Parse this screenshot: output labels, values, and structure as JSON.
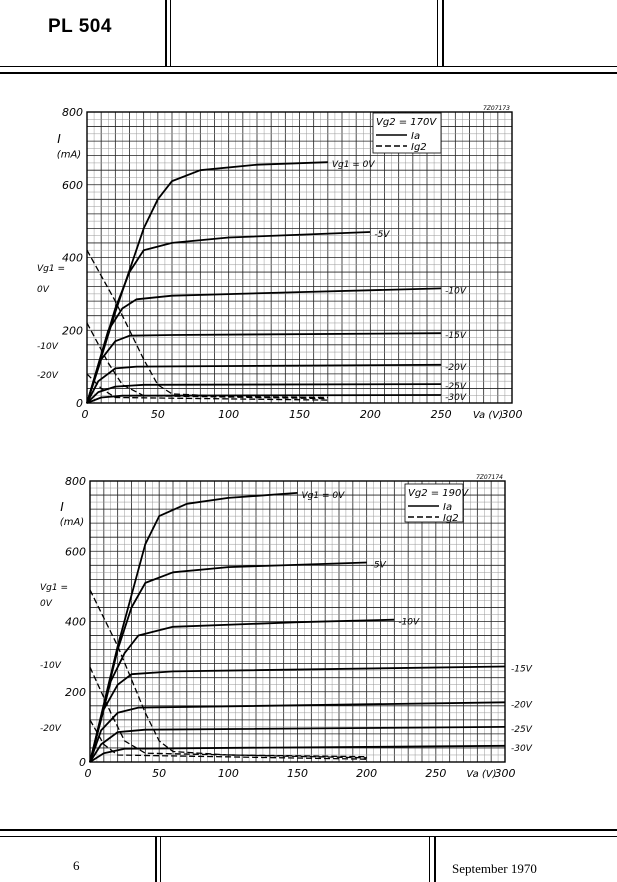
{
  "header": {
    "title": "PL 504"
  },
  "footer": {
    "page_number": "6",
    "date": "September 1970"
  },
  "chart_data": [
    {
      "type": "line",
      "figure_code": "7Z07173",
      "title": "Vg2 = 170V",
      "xlabel": "Va (V)",
      "ylabel": "I",
      "yunit": "(mA)",
      "xlim": [
        0,
        300
      ],
      "ylim": [
        0,
        800
      ],
      "xticks": [
        "0",
        "50",
        "100",
        "150",
        "200",
        "250",
        "300"
      ],
      "yticks": [
        "0",
        "200",
        "400",
        "600",
        "800"
      ],
      "grid": true,
      "legend": {
        "placement": "top-right",
        "heading": "Vg2 = 170V",
        "entries": [
          {
            "label": "Ia",
            "style": "solid"
          },
          {
            "label": "Ig2",
            "style": "dashed"
          }
        ]
      },
      "side_labels": [
        "Vg1 =",
        "0V",
        "-10V",
        "-20V"
      ],
      "series": [
        {
          "name": "Ia",
          "vg1": "Vg1 = 0V",
          "points": [
            [
              0,
              0
            ],
            [
              20,
              250
            ],
            [
              40,
              480
            ],
            [
              50,
              560
            ],
            [
              60,
              610
            ],
            [
              80,
              640
            ],
            [
              120,
              655
            ],
            [
              170,
              662
            ]
          ]
        },
        {
          "name": "Ia",
          "vg1": "-5V",
          "points": [
            [
              0,
              0
            ],
            [
              20,
              260
            ],
            [
              30,
              360
            ],
            [
              40,
              420
            ],
            [
              60,
              440
            ],
            [
              100,
              455
            ],
            [
              200,
              470
            ]
          ]
        },
        {
          "name": "Ia",
          "vg1": "-10V",
          "points": [
            [
              0,
              0
            ],
            [
              15,
              200
            ],
            [
              25,
              260
            ],
            [
              35,
              285
            ],
            [
              60,
              295
            ],
            [
              150,
              305
            ],
            [
              250,
              315
            ]
          ]
        },
        {
          "name": "Ia",
          "vg1": "-15V",
          "points": [
            [
              0,
              0
            ],
            [
              10,
              120
            ],
            [
              20,
              170
            ],
            [
              30,
              185
            ],
            [
              60,
              187
            ],
            [
              250,
              192
            ]
          ]
        },
        {
          "name": "Ia",
          "vg1": "-20V",
          "points": [
            [
              0,
              0
            ],
            [
              8,
              60
            ],
            [
              20,
              95
            ],
            [
              35,
              100
            ],
            [
              250,
              105
            ]
          ]
        },
        {
          "name": "Ia",
          "vg1": "-25V",
          "points": [
            [
              0,
              0
            ],
            [
              8,
              30
            ],
            [
              20,
              45
            ],
            [
              40,
              50
            ],
            [
              250,
              52
            ]
          ]
        },
        {
          "name": "Ia",
          "vg1": "-30V",
          "points": [
            [
              0,
              0
            ],
            [
              10,
              15
            ],
            [
              25,
              20
            ],
            [
              250,
              22
            ]
          ]
        },
        {
          "name": "Ig2",
          "vg1": "0V",
          "points": [
            [
              0,
              420
            ],
            [
              20,
              280
            ],
            [
              40,
              120
            ],
            [
              50,
              50
            ],
            [
              60,
              25
            ],
            [
              100,
              18
            ],
            [
              170,
              15
            ]
          ]
        },
        {
          "name": "Ig2",
          "vg1": "-10V",
          "points": [
            [
              0,
              220
            ],
            [
              15,
              110
            ],
            [
              25,
              50
            ],
            [
              40,
              20
            ],
            [
              170,
              12
            ]
          ]
        },
        {
          "name": "Ig2",
          "vg1": "-20V",
          "points": [
            [
              0,
              80
            ],
            [
              10,
              40
            ],
            [
              20,
              15
            ],
            [
              170,
              8
            ]
          ]
        }
      ]
    },
    {
      "type": "line",
      "figure_code": "7Z07174",
      "title": "Vg2 = 190V",
      "xlabel": "Va (V)",
      "ylabel": "I",
      "yunit": "(mA)",
      "xlim": [
        0,
        300
      ],
      "ylim": [
        0,
        800
      ],
      "xticks": [
        "0",
        "50",
        "100",
        "150",
        "200",
        "250",
        "300"
      ],
      "yticks": [
        "0",
        "200",
        "400",
        "600",
        "800"
      ],
      "grid": true,
      "legend": {
        "placement": "top-right",
        "heading": "Vg2 = 190V",
        "entries": [
          {
            "label": "Ia",
            "style": "solid"
          },
          {
            "label": "Ig2",
            "style": "dashed"
          }
        ]
      },
      "side_labels": [
        "Vg1 =",
        "0V",
        "-10V",
        "-20V"
      ],
      "series": [
        {
          "name": "Ia",
          "vg1": "Vg1 = 0V",
          "points": [
            [
              0,
              0
            ],
            [
              20,
              330
            ],
            [
              40,
              620
            ],
            [
              50,
              700
            ],
            [
              70,
              735
            ],
            [
              100,
              752
            ],
            [
              150,
              766
            ]
          ]
        },
        {
          "name": "Ia",
          "vg1": "-5V",
          "points": [
            [
              0,
              0
            ],
            [
              20,
              320
            ],
            [
              30,
              440
            ],
            [
              40,
              510
            ],
            [
              60,
              540
            ],
            [
              100,
              555
            ],
            [
              200,
              568
            ]
          ]
        },
        {
          "name": "Ia",
          "vg1": "-10V",
          "points": [
            [
              0,
              0
            ],
            [
              15,
              230
            ],
            [
              25,
              310
            ],
            [
              35,
              360
            ],
            [
              60,
              385
            ],
            [
              150,
              398
            ],
            [
              220,
              405
            ]
          ]
        },
        {
          "name": "Ia",
          "vg1": "-15V",
          "points": [
            [
              0,
              0
            ],
            [
              10,
              150
            ],
            [
              20,
              220
            ],
            [
              30,
              250
            ],
            [
              60,
              258
            ],
            [
              300,
              272
            ]
          ]
        },
        {
          "name": "Ia",
          "vg1": "-20V",
          "points": [
            [
              0,
              0
            ],
            [
              8,
              90
            ],
            [
              20,
              140
            ],
            [
              35,
              155
            ],
            [
              300,
              170
            ]
          ]
        },
        {
          "name": "Ia",
          "vg1": "-25V",
          "points": [
            [
              0,
              0
            ],
            [
              8,
              50
            ],
            [
              20,
              85
            ],
            [
              40,
              92
            ],
            [
              300,
              100
            ]
          ]
        },
        {
          "name": "Ia",
          "vg1": "-30V",
          "points": [
            [
              0,
              0
            ],
            [
              10,
              25
            ],
            [
              25,
              38
            ],
            [
              300,
              46
            ]
          ]
        },
        {
          "name": "Ig2",
          "vg1": "0V",
          "points": [
            [
              0,
              490
            ],
            [
              20,
              330
            ],
            [
              40,
              140
            ],
            [
              50,
              60
            ],
            [
              60,
              30
            ],
            [
              100,
              20
            ],
            [
              200,
              15
            ]
          ]
        },
        {
          "name": "Ig2",
          "vg1": "-10V",
          "points": [
            [
              0,
              270
            ],
            [
              15,
              140
            ],
            [
              25,
              60
            ],
            [
              40,
              25
            ],
            [
              200,
              12
            ]
          ]
        },
        {
          "name": "Ig2",
          "vg1": "-20V",
          "points": [
            [
              0,
              120
            ],
            [
              10,
              50
            ],
            [
              20,
              20
            ],
            [
              200,
              8
            ]
          ]
        }
      ]
    }
  ]
}
